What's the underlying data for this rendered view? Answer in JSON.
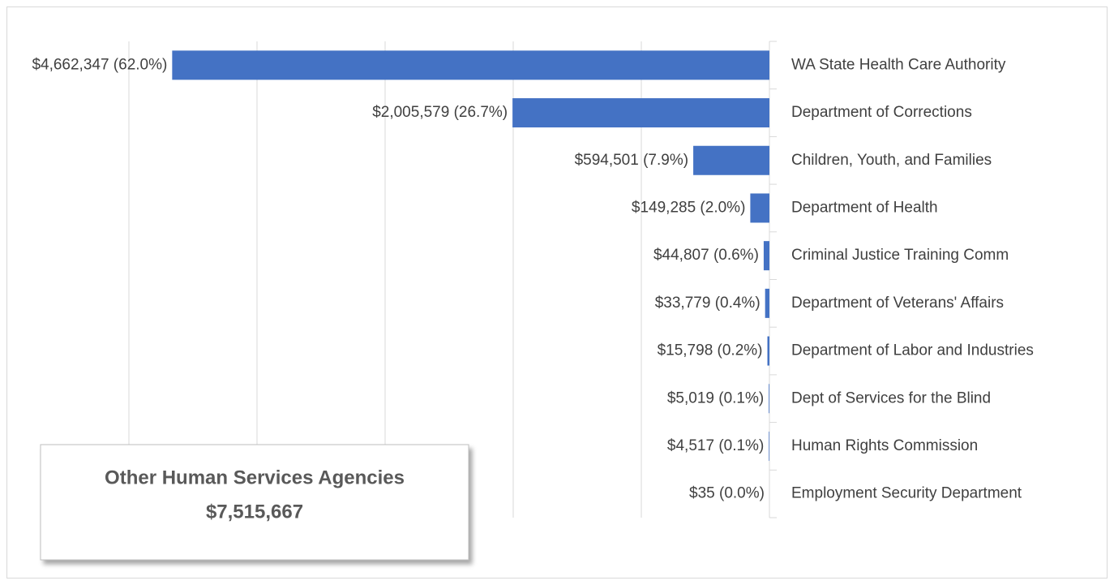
{
  "chart_data": {
    "type": "bar",
    "orientation": "horizontal",
    "reversed": true,
    "categories": [
      "WA State Health Care Authority",
      "Department of Corrections",
      "Children, Youth, and Families",
      "Department of Health",
      "Criminal Justice Training Comm",
      "Department of Veterans' Affairs",
      "Department of Labor and Industries",
      "Dept of Services for the Blind",
      "Human Rights Commission",
      "Employment Security Department"
    ],
    "values": [
      4662347,
      2005579,
      594501,
      149285,
      44807,
      33779,
      15798,
      5019,
      4517,
      35
    ],
    "value_labels": [
      "$4,662,347 (62.0%)",
      "$2,005,579 (26.7%)",
      "$594,501 (7.9%)",
      "$149,285 (2.0%)",
      "$44,807 (0.6%)",
      "$33,779 (0.4%)",
      "$15,798 (0.2%)",
      "$5,019 (0.1%)",
      "$4,517 (0.1%)",
      "$35 (0.0%)"
    ],
    "color": "#4472c4",
    "xlim": [
      0,
      6000000
    ],
    "xticks": [
      0,
      1000000,
      2000000,
      3000000,
      4000000,
      5000000
    ],
    "grid": true,
    "annotation": [
      "Other Human Services Agencies",
      "$7,515,667"
    ]
  }
}
